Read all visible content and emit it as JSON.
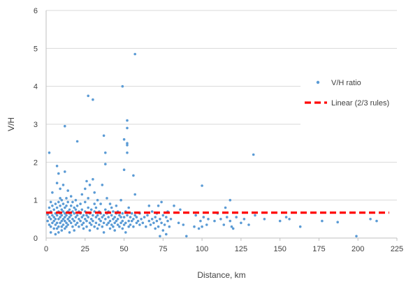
{
  "chart_data": {
    "type": "scatter",
    "title": "",
    "xlabel": "Distance, km",
    "ylabel": "V/H",
    "xlim": [
      0,
      225
    ],
    "ylim": [
      0,
      6
    ],
    "xticks": [
      0,
      25,
      50,
      75,
      100,
      125,
      150,
      175,
      200,
      225
    ],
    "yticks": [
      0,
      1,
      2,
      3,
      4,
      5,
      6
    ],
    "grid": "horizontal",
    "legend_position": "right",
    "series": [
      {
        "name": "V/H ratio",
        "kind": "scatter",
        "color": "#5b9bd5",
        "points": [
          [
            1,
            0.62
          ],
          [
            1,
            0.45
          ],
          [
            2,
            0.8
          ],
          [
            2,
            0.55
          ],
          [
            2,
            0.35
          ],
          [
            2,
            2.25
          ],
          [
            3,
            0.7
          ],
          [
            3,
            0.5
          ],
          [
            3,
            0.3
          ],
          [
            3,
            0.15
          ],
          [
            3,
            0.95
          ],
          [
            4,
            0.6
          ],
          [
            4,
            0.4
          ],
          [
            4,
            1.2
          ],
          [
            4,
            0.85
          ],
          [
            5,
            0.55
          ],
          [
            5,
            0.75
          ],
          [
            5,
            0.25
          ],
          [
            5,
            0.45
          ],
          [
            6,
            0.65
          ],
          [
            6,
            0.9
          ],
          [
            6,
            0.35
          ],
          [
            6,
            0.5
          ],
          [
            6,
            0.1
          ],
          [
            7,
            0.6
          ],
          [
            7,
            0.8
          ],
          [
            7,
            1.45
          ],
          [
            7,
            0.4
          ],
          [
            7,
            1.9
          ],
          [
            7,
            0.25
          ],
          [
            8,
            0.7
          ],
          [
            8,
            0.5
          ],
          [
            8,
            1.7
          ],
          [
            8,
            0.3
          ],
          [
            8,
            0.95
          ],
          [
            8,
            0.15
          ],
          [
            9,
            0.55
          ],
          [
            9,
            0.65
          ],
          [
            9,
            0.85
          ],
          [
            9,
            1.05
          ],
          [
            9,
            0.4
          ],
          [
            9,
            1.3
          ],
          [
            10,
            0.6
          ],
          [
            10,
            0.45
          ],
          [
            10,
            0.75
          ],
          [
            10,
            0.3
          ],
          [
            10,
            1.0
          ],
          [
            10,
            0.2
          ],
          [
            11,
            0.5
          ],
          [
            11,
            0.7
          ],
          [
            11,
            0.9
          ],
          [
            11,
            0.35
          ],
          [
            11,
            1.4
          ],
          [
            12,
            0.65
          ],
          [
            12,
            2.95
          ],
          [
            12,
            0.45
          ],
          [
            12,
            0.8
          ],
          [
            12,
            0.25
          ],
          [
            12,
            1.75
          ],
          [
            12,
            0.55
          ],
          [
            13,
            0.6
          ],
          [
            13,
            0.4
          ],
          [
            13,
            0.85
          ],
          [
            13,
            1.05
          ],
          [
            13,
            0.3
          ],
          [
            14,
            0.7
          ],
          [
            14,
            0.5
          ],
          [
            14,
            0.95
          ],
          [
            14,
            0.35
          ],
          [
            14,
            1.25
          ],
          [
            15,
            0.55
          ],
          [
            15,
            0.75
          ],
          [
            15,
            0.45
          ],
          [
            15,
            0.15
          ],
          [
            15,
            0.65
          ],
          [
            16,
            0.6
          ],
          [
            16,
            0.4
          ],
          [
            16,
            0.85
          ],
          [
            16,
            1.1
          ],
          [
            17,
            0.5
          ],
          [
            17,
            0.7
          ],
          [
            17,
            0.3
          ],
          [
            17,
            0.95
          ],
          [
            18,
            0.65
          ],
          [
            18,
            0.45
          ],
          [
            18,
            0.8
          ],
          [
            18,
            0.2
          ],
          [
            19,
            0.55
          ],
          [
            19,
            0.35
          ],
          [
            19,
            1.0
          ],
          [
            19,
            0.75
          ],
          [
            20,
            2.55
          ],
          [
            20,
            0.6
          ],
          [
            20,
            0.4
          ],
          [
            20,
            0.85
          ],
          [
            21,
            0.5
          ],
          [
            21,
            0.7
          ],
          [
            21,
            0.3
          ],
          [
            22,
            0.65
          ],
          [
            22,
            0.9
          ],
          [
            22,
            0.45
          ],
          [
            23,
            0.55
          ],
          [
            23,
            1.15
          ],
          [
            23,
            0.35
          ],
          [
            23,
            0.75
          ],
          [
            24,
            0.6
          ],
          [
            24,
            0.4
          ],
          [
            24,
            0.25
          ],
          [
            25,
            0.5
          ],
          [
            25,
            0.7
          ],
          [
            25,
            0.95
          ],
          [
            25,
            1.3
          ],
          [
            26,
            1.5
          ],
          [
            26,
            0.6
          ],
          [
            26,
            0.45
          ],
          [
            26,
            0.3
          ],
          [
            27,
            3.75
          ],
          [
            27,
            0.55
          ],
          [
            27,
            0.8
          ],
          [
            27,
            1.05
          ],
          [
            28,
            0.65
          ],
          [
            28,
            0.4
          ],
          [
            28,
            1.4
          ],
          [
            28,
            0.2
          ],
          [
            29,
            0.5
          ],
          [
            29,
            0.75
          ],
          [
            29,
            0.35
          ],
          [
            30,
            3.65
          ],
          [
            30,
            1.55
          ],
          [
            30,
            0.6
          ],
          [
            30,
            0.45
          ],
          [
            31,
            0.7
          ],
          [
            31,
            0.9
          ],
          [
            31,
            0.3
          ],
          [
            31,
            1.2
          ],
          [
            32,
            0.55
          ],
          [
            32,
            0.4
          ],
          [
            32,
            0.8
          ],
          [
            33,
            0.6
          ],
          [
            33,
            0.25
          ],
          [
            33,
            1.0
          ],
          [
            34,
            0.5
          ],
          [
            34,
            0.7
          ],
          [
            34,
            0.35
          ],
          [
            35,
            0.65
          ],
          [
            35,
            0.45
          ],
          [
            35,
            0.9
          ],
          [
            36,
            0.55
          ],
          [
            36,
            1.4
          ],
          [
            36,
            0.3
          ],
          [
            37,
            2.7
          ],
          [
            37,
            0.6
          ],
          [
            37,
            0.4
          ],
          [
            37,
            0.15
          ],
          [
            38,
            2.25
          ],
          [
            38,
            1.95
          ],
          [
            38,
            0.75
          ],
          [
            38,
            0.5
          ],
          [
            39,
            0.65
          ],
          [
            39,
            0.35
          ],
          [
            39,
            1.05
          ],
          [
            40,
            0.55
          ],
          [
            40,
            0.7
          ],
          [
            40,
            0.4
          ],
          [
            41,
            0.45
          ],
          [
            41,
            0.9
          ],
          [
            41,
            0.25
          ],
          [
            42,
            0.6
          ],
          [
            42,
            0.35
          ],
          [
            42,
            0.8
          ],
          [
            43,
            0.5
          ],
          [
            43,
            0.3
          ],
          [
            43,
            0.7
          ],
          [
            44,
            0.55
          ],
          [
            44,
            0.4
          ],
          [
            44,
            0.2
          ],
          [
            45,
            0.65
          ],
          [
            45,
            0.45
          ],
          [
            45,
            0.85
          ],
          [
            46,
            0.5
          ],
          [
            46,
            0.35
          ],
          [
            46,
            0.7
          ],
          [
            47,
            0.6
          ],
          [
            47,
            0.3
          ],
          [
            48,
            0.55
          ],
          [
            48,
            1.0
          ],
          [
            48,
            0.4
          ],
          [
            49,
            4.0
          ],
          [
            49,
            0.65
          ],
          [
            49,
            0.45
          ],
          [
            49,
            0.25
          ],
          [
            50,
            2.6
          ],
          [
            50,
            1.8
          ],
          [
            50,
            0.55
          ],
          [
            50,
            0.35
          ],
          [
            51,
            0.7
          ],
          [
            51,
            0.4
          ],
          [
            51,
            0.15
          ],
          [
            52,
            3.1
          ],
          [
            52,
            2.9
          ],
          [
            52,
            2.5
          ],
          [
            52,
            2.45
          ],
          [
            52,
            2.25
          ],
          [
            52,
            0.6
          ],
          [
            53,
            0.45
          ],
          [
            53,
            0.8
          ],
          [
            53,
            0.3
          ],
          [
            54,
            0.55
          ],
          [
            54,
            0.35
          ],
          [
            55,
            0.65
          ],
          [
            55,
            0.45
          ],
          [
            56,
            1.65
          ],
          [
            56,
            0.5
          ],
          [
            56,
            0.3
          ],
          [
            57,
            4.85
          ],
          [
            57,
            1.15
          ],
          [
            57,
            0.6
          ],
          [
            58,
            0.4
          ],
          [
            58,
            0.55
          ],
          [
            59,
            0.45
          ],
          [
            60,
            0.65
          ],
          [
            60,
            0.35
          ],
          [
            61,
            0.5
          ],
          [
            62,
            0.4
          ],
          [
            63,
            0.55
          ],
          [
            64,
            0.3
          ],
          [
            65,
            0.6
          ],
          [
            66,
            0.45
          ],
          [
            66,
            0.85
          ],
          [
            67,
            0.35
          ],
          [
            68,
            0.5
          ],
          [
            68,
            0.7
          ],
          [
            69,
            0.4
          ],
          [
            70,
            0.55
          ],
          [
            70,
            0.25
          ],
          [
            71,
            0.65
          ],
          [
            71,
            0.45
          ],
          [
            72,
            0.3
          ],
          [
            72,
            0.85
          ],
          [
            73,
            0.5
          ],
          [
            73,
            0.05
          ],
          [
            74,
            0.95
          ],
          [
            74,
            0.4
          ],
          [
            75,
            0.6
          ],
          [
            75,
            0.2
          ],
          [
            76,
            0.35
          ],
          [
            77,
            0.55
          ],
          [
            77,
            0.1
          ],
          [
            78,
            0.45
          ],
          [
            78,
            0.7
          ],
          [
            79,
            0.3
          ],
          [
            80,
            0.5
          ],
          [
            82,
            0.85
          ],
          [
            85,
            0.4
          ],
          [
            86,
            0.75
          ],
          [
            88,
            0.35
          ],
          [
            90,
            0.05
          ],
          [
            95,
            0.3
          ],
          [
            96,
            0.6
          ],
          [
            98,
            0.25
          ],
          [
            99,
            0.45
          ],
          [
            100,
            1.38
          ],
          [
            100,
            0.3
          ],
          [
            101,
            0.55
          ],
          [
            103,
            0.35
          ],
          [
            104,
            0.5
          ],
          [
            108,
            0.45
          ],
          [
            110,
            0.65
          ],
          [
            112,
            0.5
          ],
          [
            114,
            0.35
          ],
          [
            115,
            0.8
          ],
          [
            116,
            0.55
          ],
          [
            118,
            1.0
          ],
          [
            118,
            0.45
          ],
          [
            119,
            0.3
          ],
          [
            120,
            0.25
          ],
          [
            122,
            0.55
          ],
          [
            125,
            0.4
          ],
          [
            127,
            0.5
          ],
          [
            130,
            0.35
          ],
          [
            133,
            2.2
          ],
          [
            134,
            0.6
          ],
          [
            140,
            0.5
          ],
          [
            150,
            0.45
          ],
          [
            154,
            0.55
          ],
          [
            156,
            0.5
          ],
          [
            163,
            0.3
          ],
          [
            177,
            0.45
          ],
          [
            187,
            0.42
          ],
          [
            199,
            0.05
          ],
          [
            208,
            0.5
          ],
          [
            212,
            0.45
          ]
        ]
      },
      {
        "name": "Linear (2/3 rules)",
        "kind": "line",
        "style": "dashed",
        "color": "#ff0000",
        "x": [
          0,
          220
        ],
        "y": [
          0.67,
          0.67
        ]
      }
    ]
  }
}
